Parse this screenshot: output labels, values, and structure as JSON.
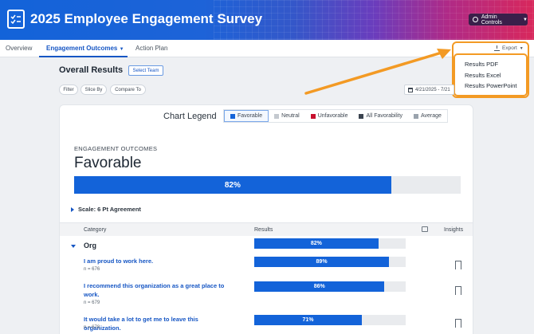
{
  "header": {
    "title": "2025 Employee Engagement Survey",
    "admin_label": "Admin Controls"
  },
  "nav": {
    "tabs": [
      {
        "label": "Overview"
      },
      {
        "label": "Engagement Outcomes"
      },
      {
        "label": "Action Plan"
      }
    ]
  },
  "export": {
    "label": "Export",
    "options": [
      "Results PDF",
      "Results Excel",
      "Results PowerPoint"
    ]
  },
  "results": {
    "title": "Overall Results",
    "select_team": "Select Team",
    "filters": [
      "Filter",
      "Slice By",
      "Compare To"
    ],
    "date_range": "4/21/2025 - 7/21"
  },
  "legend": {
    "title": "Chart Legend",
    "items": [
      {
        "label": "Favorable",
        "color": "#1363d9"
      },
      {
        "label": "Neutral",
        "color": "#c4c9cf"
      },
      {
        "label": "Unfavorable",
        "color": "#c8102e"
      },
      {
        "label": "All Favorability",
        "color": "#3b4450"
      },
      {
        "label": "Average",
        "color": "#9aa3ad"
      }
    ]
  },
  "summary": {
    "section_label": "ENGAGEMENT OUTCOMES",
    "heading": "Favorable",
    "value_label": "82%",
    "value": 82,
    "scale": "Scale: 6 Pt Agreement"
  },
  "table": {
    "headers": {
      "category": "Category",
      "results": "Results",
      "insights": "Insights"
    },
    "group": {
      "label": "Org",
      "value_label": "82%",
      "value": 82
    },
    "rows": [
      {
        "text": "I am proud to work here.",
        "n": "n = 676",
        "value_label": "89%",
        "value": 89
      },
      {
        "text": "I recommend this organization as a great place to work.",
        "n": "n = 679",
        "value_label": "86%",
        "value": 86
      },
      {
        "text": "It would take a lot to get me to leave this organization.",
        "n": "n = 678",
        "value_label": "71%",
        "value": 71
      }
    ]
  }
}
